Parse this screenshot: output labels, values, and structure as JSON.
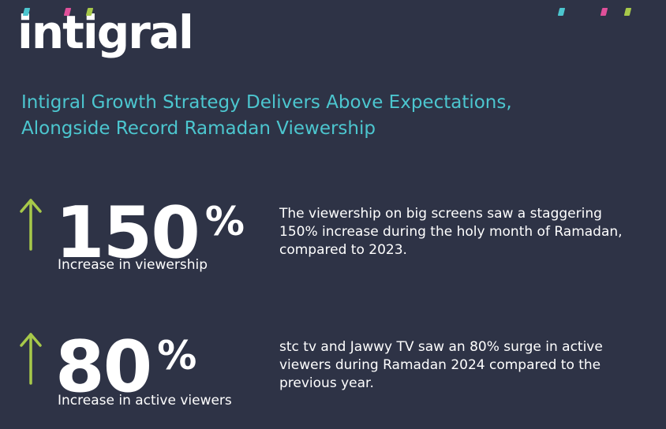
{
  "brand": {
    "logo_text": "intigral",
    "accent_colors": {
      "teal": "#4cc6cf",
      "pink": "#e0509a",
      "lime": "#a7c94a",
      "background": "#2e3346"
    }
  },
  "headline": {
    "line1": "Intigral Growth Strategy Delivers Above Expectations,",
    "line2": "Alongside Record Ramadan Viewership"
  },
  "stats": [
    {
      "number": "150",
      "unit": "%",
      "caption": "Increase in viewership",
      "description": "The viewership on big screens saw a staggering 150% increase during the holy month of Ramadan, compared to 2023.",
      "icon": "arrow-up-icon"
    },
    {
      "number": "80",
      "unit": "%",
      "caption": "Increase in active viewers",
      "description": "stc tv and Jawwy TV saw an 80% surge in active viewers during Ramadan 2024 compared to the previous year.",
      "icon": "arrow-up-icon"
    }
  ]
}
